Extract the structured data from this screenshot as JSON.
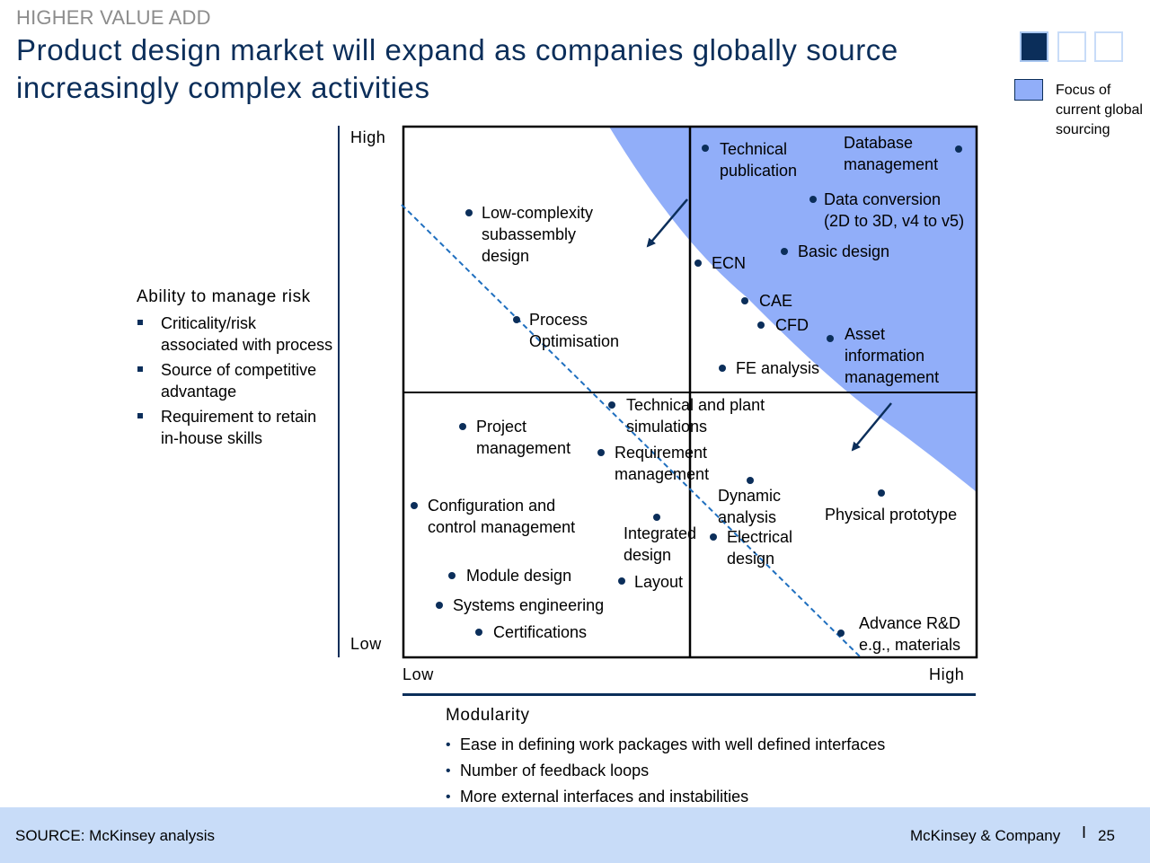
{
  "header": {
    "kicker": "HIGHER VALUE ADD",
    "title": "Product design market will expand as companies globally source increasingly complex activities"
  },
  "tracker": {
    "filled_count": 1,
    "total": 3
  },
  "legend": {
    "label": "Focus of current global sourcing",
    "color": "#91aef9"
  },
  "y_axis": {
    "title": "Ability to manage risk",
    "high_label": "High",
    "low_label": "Low",
    "bullets": [
      "Criticality/risk associated with process",
      "Source of competitive advantage",
      "Requirement to retain in-house skills"
    ]
  },
  "x_axis": {
    "title": "Modularity",
    "low_label": "Low",
    "high_label": "High",
    "bullets": [
      "Ease in defining work packages with well defined interfaces",
      "Number of feedback loops",
      "More external interfaces and instabilities"
    ]
  },
  "items": [
    {
      "label": "Technical\npublication"
    },
    {
      "label": "Database\nmanagement"
    },
    {
      "label": "Data conversion\n(2D to 3D, v4 to v5)"
    },
    {
      "label": "Low-complexity\nsubassembly\ndesign"
    },
    {
      "label": "Basic design"
    },
    {
      "label": "ECN"
    },
    {
      "label": "CAE"
    },
    {
      "label": "CFD"
    },
    {
      "label": "Asset\ninformation\nmanagement"
    },
    {
      "label": "Process\nOptimisation"
    },
    {
      "label": "FE analysis"
    },
    {
      "label": "Technical and plant\nsimulations"
    },
    {
      "label": "Project\nmanagement"
    },
    {
      "label": "Requirement\nmanagement"
    },
    {
      "label": "Dynamic\nanalysis"
    },
    {
      "label": "Physical prototype"
    },
    {
      "label": "Configuration and\ncontrol management"
    },
    {
      "label": "Integrated\ndesign"
    },
    {
      "label": "Electrical\ndesign"
    },
    {
      "label": "Module design"
    },
    {
      "label": "Layout"
    },
    {
      "label": "Systems engineering"
    },
    {
      "label": "Certifications"
    },
    {
      "label": "Advance R&D\ne.g., materials"
    }
  ],
  "footer": {
    "source": "SOURCE: McKinsey analysis",
    "brand": "McKinsey & Company",
    "separator": "I",
    "page": "25"
  },
  "colors": {
    "navy": "#0b2e5a",
    "focus_area": "#91aef9",
    "trend_line": "#1f6fbf",
    "footer_bg": "#c8dcf8"
  }
}
